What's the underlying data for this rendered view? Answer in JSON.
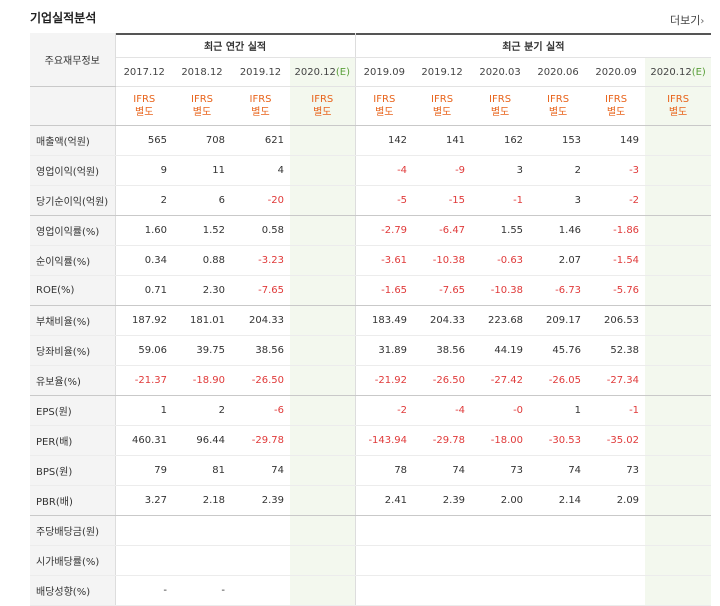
{
  "title": "기업실적분석",
  "more": {
    "label": "더보기",
    "arrow": "›"
  },
  "header": {
    "row_label": "주요재무정보",
    "annual_group": "최근 연간 실적",
    "quarter_group": "최근 분기 실적",
    "annual_periods": [
      "2017.12",
      "2018.12",
      "2019.12",
      "2020.12"
    ],
    "quarter_periods": [
      "2019.09",
      "2019.12",
      "2020.03",
      "2020.06",
      "2020.09",
      "2020.12"
    ],
    "estimate_mark": "(E)",
    "ifrs_line1": "IFRS",
    "ifrs_line2": "별도"
  },
  "rows": [
    {
      "label": "매출액(억원)",
      "values": [
        "565",
        "708",
        "621",
        "",
        "142",
        "141",
        "162",
        "153",
        "149",
        ""
      ]
    },
    {
      "label": "영업이익(억원)",
      "values": [
        "9",
        "11",
        "4",
        "",
        "-4",
        "-9",
        "3",
        "2",
        "-3",
        ""
      ]
    },
    {
      "label": "당기순이익(억원)",
      "values": [
        "2",
        "6",
        "-20",
        "",
        "-5",
        "-15",
        "-1",
        "3",
        "-2",
        ""
      ]
    },
    {
      "label": "영업이익률(%)",
      "values": [
        "1.60",
        "1.52",
        "0.58",
        "",
        "-2.79",
        "-6.47",
        "1.55",
        "1.46",
        "-1.86",
        ""
      ]
    },
    {
      "label": "순이익률(%)",
      "values": [
        "0.34",
        "0.88",
        "-3.23",
        "",
        "-3.61",
        "-10.38",
        "-0.63",
        "2.07",
        "-1.54",
        ""
      ]
    },
    {
      "label": "ROE(%)",
      "values": [
        "0.71",
        "2.30",
        "-7.65",
        "",
        "-1.65",
        "-7.65",
        "-10.38",
        "-6.73",
        "-5.76",
        ""
      ]
    },
    {
      "label": "부채비율(%)",
      "values": [
        "187.92",
        "181.01",
        "204.33",
        "",
        "183.49",
        "204.33",
        "223.68",
        "209.17",
        "206.53",
        ""
      ]
    },
    {
      "label": "당좌비율(%)",
      "values": [
        "59.06",
        "39.75",
        "38.56",
        "",
        "31.89",
        "38.56",
        "44.19",
        "45.76",
        "52.38",
        ""
      ]
    },
    {
      "label": "유보율(%)",
      "values": [
        "-21.37",
        "-18.90",
        "-26.50",
        "",
        "-21.92",
        "-26.50",
        "-27.42",
        "-26.05",
        "-27.34",
        ""
      ]
    },
    {
      "label": "EPS(원)",
      "values": [
        "1",
        "2",
        "-6",
        "",
        "-2",
        "-4",
        "-0",
        "1",
        "-1",
        ""
      ]
    },
    {
      "label": "PER(배)",
      "values": [
        "460.31",
        "96.44",
        "-29.78",
        "",
        "-143.94",
        "-29.78",
        "-18.00",
        "-30.53",
        "-35.02",
        ""
      ]
    },
    {
      "label": "BPS(원)",
      "values": [
        "79",
        "81",
        "74",
        "",
        "78",
        "74",
        "73",
        "74",
        "73",
        ""
      ]
    },
    {
      "label": "PBR(배)",
      "values": [
        "3.27",
        "2.18",
        "2.39",
        "",
        "2.41",
        "2.39",
        "2.00",
        "2.14",
        "2.09",
        ""
      ]
    },
    {
      "label": "주당배당금(원)",
      "values": [
        "",
        "",
        "",
        "",
        "",
        "",
        "",
        "",
        "",
        ""
      ]
    },
    {
      "label": "시가배당률(%)",
      "values": [
        "",
        "",
        "",
        "",
        "",
        "",
        "",
        "",
        "",
        ""
      ]
    },
    {
      "label": "배당성향(%)",
      "values": [
        "-",
        "-",
        "",
        "",
        "",
        "",
        "",
        "",
        "",
        ""
      ]
    }
  ],
  "group_ends": [
    2,
    5,
    8,
    12
  ],
  "colors": {
    "negative": "#e03a3a",
    "ifrs": "#e8641c",
    "estimate_bg": "#f3f8ee",
    "header_bg": "#f4f4f4"
  }
}
